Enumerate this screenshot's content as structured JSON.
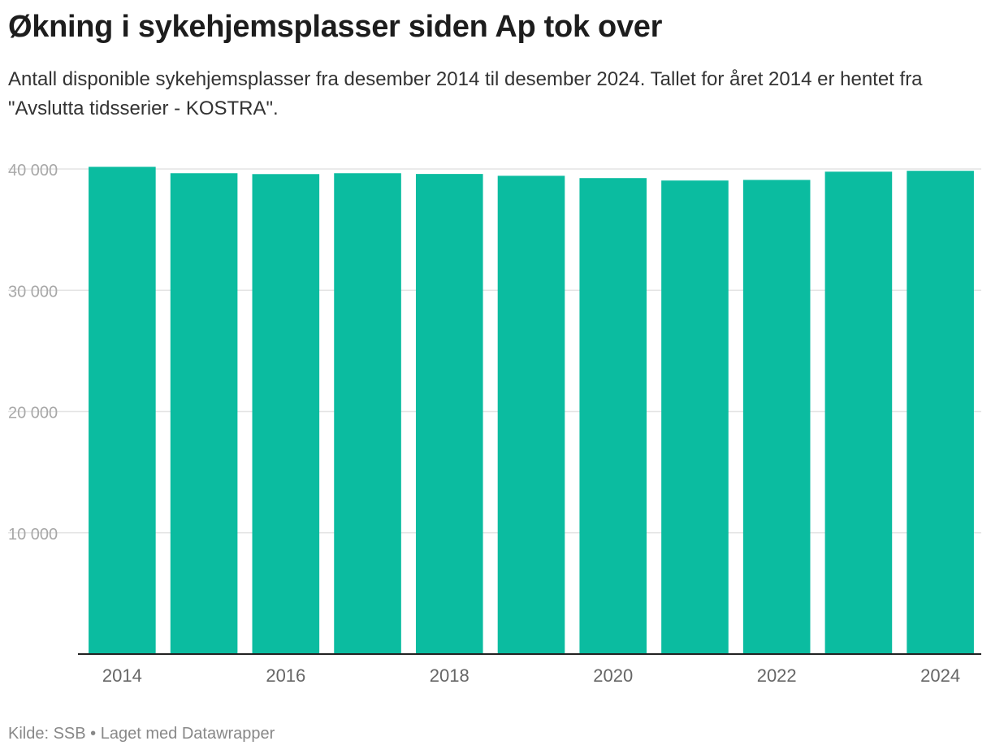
{
  "header": {
    "title": "Økning i sykehjemsplasser siden Ap tok over",
    "subtitle": "Antall disponible sykehjemsplasser fra desember 2014 til desember 2024. Tallet for året 2014 er hentet fra \"Avslutta tidsserier - KOSTRA\"."
  },
  "footer": {
    "source_label": "Kilde: SSB",
    "separator": "•",
    "made_with": "Laget med Datawrapper"
  },
  "colors": {
    "bar": "#0bbca0",
    "grid": "#e4e4e4",
    "axis": "#222222",
    "tick_text": "#a8a8a8",
    "x_tick_text": "#666666"
  },
  "chart_data": {
    "type": "bar",
    "title": "Økning i sykehjemsplasser siden Ap tok over",
    "xlabel": "",
    "ylabel": "",
    "categories": [
      "2014",
      "2015",
      "2016",
      "2017",
      "2018",
      "2019",
      "2020",
      "2021",
      "2022",
      "2023",
      "2024"
    ],
    "values": [
      40180,
      39650,
      39580,
      39650,
      39590,
      39440,
      39250,
      39050,
      39100,
      39780,
      39850
    ],
    "x_tick_labels": [
      "2014",
      "",
      "2016",
      "",
      "2018",
      "",
      "2020",
      "",
      "2022",
      "",
      "2024"
    ],
    "y_ticks": [
      10000,
      20000,
      30000,
      40000
    ],
    "y_tick_labels": [
      "10 000",
      "20 000",
      "30 000",
      "40 000"
    ],
    "ylim": [
      0,
      40000
    ],
    "grid": true,
    "legend": "none"
  }
}
